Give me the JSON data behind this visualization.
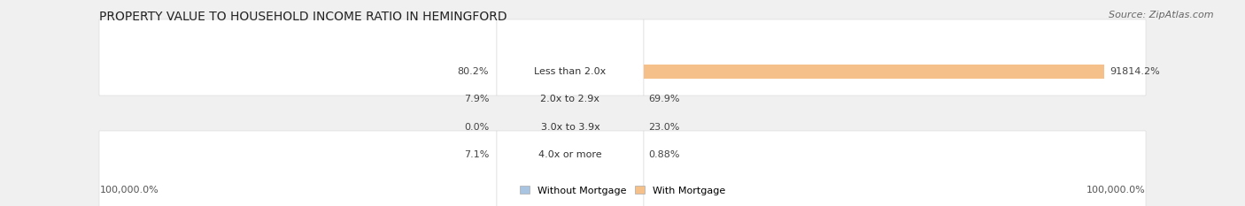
{
  "title": "PROPERTY VALUE TO HOUSEHOLD INCOME RATIO IN HEMINGFORD",
  "source": "Source: ZipAtlas.com",
  "categories": [
    "Less than 2.0x",
    "2.0x to 2.9x",
    "3.0x to 3.9x",
    "4.0x or more"
  ],
  "without_mortgage": [
    80.2,
    7.9,
    0.0,
    7.1
  ],
  "with_mortgage": [
    91814.2,
    69.9,
    23.0,
    0.88
  ],
  "without_mortgage_color": "#a8c4e0",
  "with_mortgage_color": "#f5c08a",
  "background_color": "#f0f0f0",
  "row_bg_color": "#e8e8e8",
  "axis_label_left": "100,000.0%",
  "axis_label_right": "100,000.0%",
  "xlim": 100000,
  "title_fontsize": 10,
  "source_fontsize": 8,
  "label_fontsize": 8,
  "cat_fontsize": 8,
  "figsize": [
    14.06,
    2.33
  ],
  "dpi": 100,
  "legend_label_wom": "Without Mortgage",
  "legend_label_wm": "With Mortgage"
}
